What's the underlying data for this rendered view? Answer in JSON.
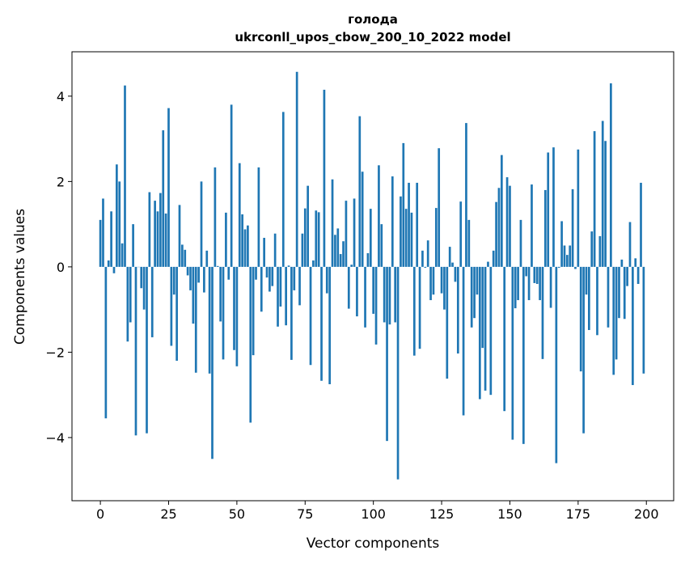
{
  "chart_data": {
    "type": "bar",
    "title": "голода",
    "subtitle": "ukrconll_upos_cbow_200_10_2022 model",
    "xlabel": "Vector components",
    "ylabel": "Components values",
    "xlim": [
      -10.4,
      210
    ],
    "ylim": [
      -5.48,
      5.04
    ],
    "xticks": [
      0,
      25,
      50,
      75,
      100,
      125,
      150,
      175,
      200
    ],
    "yticks": [
      -4,
      -2,
      0,
      2,
      4
    ],
    "xtick_labels": [
      "0",
      "25",
      "50",
      "75",
      "100",
      "125",
      "150",
      "175",
      "200"
    ],
    "ytick_labels": [
      "−4",
      "−2",
      "0",
      "2",
      "4"
    ],
    "grid": false,
    "color": "#1f77b4",
    "values": [
      1.1,
      1.6,
      -3.55,
      0.15,
      1.3,
      -0.15,
      2.4,
      2.0,
      0.55,
      4.25,
      -1.75,
      -1.3,
      1.0,
      -3.95,
      0.0,
      -0.5,
      -1.0,
      -3.9,
      1.75,
      -1.65,
      1.55,
      1.3,
      1.73,
      3.2,
      1.25,
      3.72,
      -1.85,
      -0.65,
      -2.2,
      1.45,
      0.52,
      0.4,
      -0.2,
      -0.55,
      -1.33,
      -2.48,
      -0.37,
      2.0,
      -0.6,
      0.38,
      -2.5,
      -4.5,
      2.33,
      0.02,
      -1.28,
      -2.17,
      1.27,
      -0.3,
      3.8,
      -1.95,
      -2.33,
      2.43,
      1.23,
      0.88,
      0.97,
      -3.65,
      -2.07,
      -0.3,
      2.33,
      -1.05,
      0.68,
      -0.25,
      -0.58,
      -0.45,
      0.78,
      -1.4,
      -0.93,
      3.63,
      -1.37,
      0.03,
      -2.18,
      -0.55,
      4.57,
      -0.9,
      0.78,
      1.37,
      1.9,
      -2.3,
      0.15,
      1.32,
      1.28,
      -2.67,
      4.15,
      -0.62,
      -2.75,
      2.05,
      0.75,
      0.9,
      0.3,
      0.6,
      1.55,
      -0.98,
      0.05,
      1.6,
      -1.16,
      3.53,
      2.23,
      -1.42,
      0.32,
      1.36,
      -1.1,
      -1.82,
      2.38,
      1.0,
      -1.3,
      -4.08,
      -1.35,
      2.12,
      -1.3,
      -4.98,
      1.65,
      2.9,
      1.36,
      1.97,
      1.27,
      -2.08,
      1.97,
      -1.92,
      0.38,
      -0.02,
      0.62,
      -0.78,
      -0.65,
      1.38,
      2.78,
      -0.62,
      -1.0,
      -2.62,
      0.47,
      0.1,
      -0.35,
      -2.03,
      1.53,
      -3.48,
      3.37,
      1.1,
      -1.42,
      -1.2,
      -0.65,
      -3.1,
      -1.9,
      -2.9,
      0.12,
      -3.0,
      0.38,
      1.52,
      1.85,
      2.62,
      -3.38,
      2.1,
      1.9,
      -4.05,
      -0.97,
      -0.78,
      1.1,
      -4.15,
      -0.22,
      -0.78,
      1.93,
      -0.38,
      -0.4,
      -0.78,
      -2.16,
      1.8,
      2.68,
      -0.96,
      2.8,
      -4.6,
      -0.02,
      1.07,
      0.5,
      0.28,
      0.5,
      1.82,
      -0.05,
      2.75,
      -2.45,
      -3.9,
      -0.65,
      -1.48,
      0.83,
      3.18,
      -1.6,
      0.72,
      3.42,
      2.95,
      -1.42,
      4.3,
      -2.53,
      -2.17,
      -1.2,
      0.17,
      -1.22,
      -0.45,
      1.05,
      -2.77,
      0.2,
      -0.4,
      1.97,
      -2.5
    ]
  }
}
